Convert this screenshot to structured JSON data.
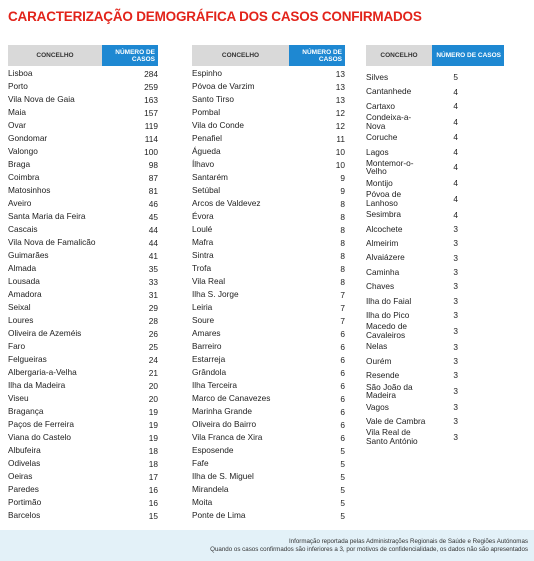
{
  "title": "CARACTERIZAÇÃO DEMOGRÁFICA DOS CASOS CONFIRMADOS",
  "columns": [
    "CONCELHO",
    "NÚMERO DE CASOS"
  ],
  "tables": [
    {
      "rows": [
        [
          "Lisboa",
          284
        ],
        [
          "Porto",
          259
        ],
        [
          "Vila Nova de Gaia",
          163
        ],
        [
          "Maia",
          157
        ],
        [
          "Ovar",
          119
        ],
        [
          "Gondomar",
          114
        ],
        [
          "Valongo",
          100
        ],
        [
          "Braga",
          98
        ],
        [
          "Coimbra",
          87
        ],
        [
          "Matosinhos",
          81
        ],
        [
          "Aveiro",
          46
        ],
        [
          "Santa Maria da Feira",
          45
        ],
        [
          "Cascais",
          44
        ],
        [
          "Vila Nova de Famalicão",
          44
        ],
        [
          "Guimarães",
          41
        ],
        [
          "Almada",
          35
        ],
        [
          "Lousada",
          33
        ],
        [
          "Amadora",
          31
        ],
        [
          "Seixal",
          29
        ],
        [
          "Loures",
          28
        ],
        [
          "Oliveira de Azeméis",
          26
        ],
        [
          "Faro",
          25
        ],
        [
          "Felgueiras",
          24
        ],
        [
          "Albergaria-a-Velha",
          21
        ],
        [
          "Ilha da Madeira",
          20
        ],
        [
          "Viseu",
          20
        ],
        [
          "Bragança",
          19
        ],
        [
          "Paços de Ferreira",
          19
        ],
        [
          "Viana do Castelo",
          19
        ],
        [
          "Albufeira",
          18
        ],
        [
          "Odivelas",
          18
        ],
        [
          "Oeiras",
          17
        ],
        [
          "Paredes",
          16
        ],
        [
          "Portimão",
          16
        ],
        [
          "Barcelos",
          15
        ]
      ]
    },
    {
      "rows": [
        [
          "Espinho",
          13
        ],
        [
          "Póvoa de Varzim",
          13
        ],
        [
          "Santo Tirso",
          13
        ],
        [
          "Pombal",
          12
        ],
        [
          "Vila do Conde",
          12
        ],
        [
          "Penafiel",
          11
        ],
        [
          "Águeda",
          10
        ],
        [
          "Ílhavo",
          10
        ],
        [
          "Santarém",
          9
        ],
        [
          "Setúbal",
          9
        ],
        [
          "Arcos de Valdevez",
          8
        ],
        [
          "Évora",
          8
        ],
        [
          "Loulé",
          8
        ],
        [
          "Mafra",
          8
        ],
        [
          "Sintra",
          8
        ],
        [
          "Trofa",
          8
        ],
        [
          "Vila Real",
          8
        ],
        [
          "Ilha S. Jorge",
          7
        ],
        [
          "Leiria",
          7
        ],
        [
          "Soure",
          7
        ],
        [
          "Amares",
          6
        ],
        [
          "Barreiro",
          6
        ],
        [
          "Estarreja",
          6
        ],
        [
          "Grândola",
          6
        ],
        [
          "Ilha Terceira",
          6
        ],
        [
          "Marco de Canavezes",
          6
        ],
        [
          "Marinha Grande",
          6
        ],
        [
          "Oliveira do Bairro",
          6
        ],
        [
          "Vila Franca de Xira",
          6
        ],
        [
          "Esposende",
          5
        ],
        [
          "Fafe",
          5
        ],
        [
          "Ilha de S. Miguel",
          5
        ],
        [
          "Mirandela",
          5
        ],
        [
          "Moita",
          5
        ],
        [
          "Ponte de Lima",
          5
        ]
      ]
    },
    {
      "rows": [
        [
          "Silves",
          5
        ],
        [
          "Cantanhede",
          4
        ],
        [
          "Cartaxo",
          4
        ],
        [
          "Condeixa-a-Nova",
          4
        ],
        [
          "Coruche",
          4
        ],
        [
          "Lagos",
          4
        ],
        [
          "Montemor-o-Velho",
          4
        ],
        [
          "Montijo",
          4
        ],
        [
          "Póvoa de Lanhoso",
          4
        ],
        [
          "Sesimbra",
          4
        ],
        [
          "Alcochete",
          3
        ],
        [
          "Almeirim",
          3
        ],
        [
          "Alvaiázere",
          3
        ],
        [
          "Caminha",
          3
        ],
        [
          "Chaves",
          3
        ],
        [
          "Ilha do Faial",
          3
        ],
        [
          "Ilha do Pico",
          3
        ],
        [
          "Macedo de Cavaleiros",
          3
        ],
        [
          "Nelas",
          3
        ],
        [
          "Ourém",
          3
        ],
        [
          "Resende",
          3
        ],
        [
          "São João da Madeira",
          3
        ],
        [
          "Vagos",
          3
        ],
        [
          "Vale de Cambra",
          3
        ],
        [
          "Vila Real de Santo António",
          3
        ]
      ]
    }
  ],
  "footer": [
    "Informação reportada pelas Administrações Regionais de Saúde e Regiões Autónomas",
    "Quando os casos confirmados são inferiores a 3, por motivos de confidencialidade, os dados não são apresentados"
  ]
}
